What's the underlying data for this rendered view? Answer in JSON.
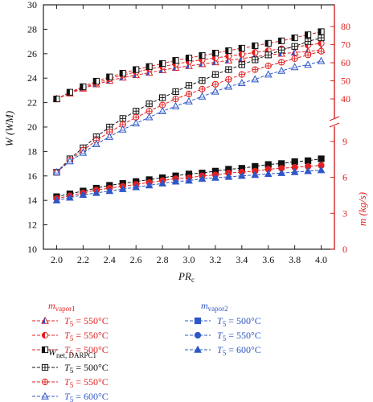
{
  "chart_data": {
    "type": "line",
    "xlabel": "PR",
    "xlabel_sub": "c",
    "ylabel_left": "W (WM)",
    "ylabel_right": "m (kg/s)",
    "xlim": [
      1.9,
      4.1
    ],
    "xticks": [
      "2.0",
      "2.2",
      "2.4",
      "2.6",
      "2.8",
      "3.0",
      "3.2",
      "3.4",
      "3.6",
      "3.8",
      "4.0"
    ],
    "ylim_left": [
      10,
      30
    ],
    "yticks_left": [
      "10",
      "12",
      "14",
      "16",
      "18",
      "20",
      "22",
      "24",
      "26",
      "28",
      "30"
    ],
    "yticks_right_upper": [
      "40",
      "50",
      "60",
      "70",
      "80"
    ],
    "yticks_right_lower": [
      "0",
      "3",
      "6",
      "9"
    ],
    "x": [
      2.0,
      2.1,
      2.2,
      2.3,
      2.4,
      2.5,
      2.6,
      2.7,
      2.8,
      2.9,
      3.0,
      3.1,
      3.2,
      3.3,
      3.4,
      3.5,
      3.6,
      3.7,
      3.8,
      3.9,
      4.0
    ],
    "series": [
      {
        "name": "m_vapor1 T5 = 550°C",
        "axis": "m1",
        "color": "#e41f1f",
        "marker": "tri-half",
        "values": [
          22.3,
          22.75,
          23.15,
          23.5,
          23.8,
          24.05,
          24.25,
          24.45,
          24.65,
          24.85,
          25.0,
          25.15,
          25.3,
          25.45,
          25.6,
          25.75,
          25.9,
          26.0,
          26.1,
          26.2,
          26.3
        ]
      },
      {
        "name": "m_vapor1 T5 = 550°C",
        "axis": "m1",
        "color": "#e41f1f",
        "marker": "circle-half",
        "values": [
          22.3,
          22.8,
          23.2,
          23.6,
          23.95,
          24.25,
          24.5,
          24.75,
          24.95,
          25.15,
          25.35,
          25.5,
          25.65,
          25.8,
          25.95,
          26.1,
          26.25,
          26.4,
          26.55,
          26.7,
          26.85
        ]
      },
      {
        "name": "m_vapor1 T5 = 500°C",
        "axis": "m1",
        "color": "#e41f1f",
        "marker": "square-half",
        "values": [
          22.3,
          22.85,
          23.3,
          23.75,
          24.1,
          24.4,
          24.7,
          24.95,
          25.2,
          25.45,
          25.65,
          25.85,
          26.05,
          26.25,
          26.45,
          26.65,
          26.85,
          27.05,
          27.3,
          27.55,
          27.8
        ]
      },
      {
        "name": "m_vapor2 T5 = 500°C",
        "axis": "m2",
        "color": "#111111",
        "marker": "square",
        "values": [
          5.3,
          5.45,
          5.6,
          5.75,
          5.9,
          6.0,
          6.1,
          6.2,
          6.3,
          6.4,
          6.5,
          6.55,
          6.65,
          6.75,
          6.8,
          6.9,
          7.0,
          7.05,
          7.15,
          7.2,
          7.3
        ]
      },
      {
        "name": "m_vapor2 T5 = 550°C",
        "axis": "m2",
        "color": "#e41f1f",
        "marker": "circle",
        "values": [
          5.2,
          5.35,
          5.5,
          5.65,
          5.75,
          5.85,
          5.95,
          6.05,
          6.15,
          6.25,
          6.3,
          6.4,
          6.45,
          6.55,
          6.6,
          6.65,
          6.75,
          6.8,
          6.85,
          6.9,
          6.95
        ]
      },
      {
        "name": "m_vapor2 T5 = 600°C",
        "axis": "m2",
        "color": "#2e57c7",
        "marker": "triangle",
        "values": [
          5.1,
          5.25,
          5.4,
          5.5,
          5.6,
          5.7,
          5.8,
          5.9,
          6.0,
          6.1,
          6.15,
          6.25,
          6.3,
          6.35,
          6.4,
          6.45,
          6.5,
          6.55,
          6.6,
          6.65,
          6.7
        ]
      },
      {
        "name": "W_net, DARPC1 T5 = 500°C",
        "axis": "w",
        "color": "#111111",
        "marker": "square-plus",
        "values": [
          16.3,
          17.4,
          18.3,
          19.2,
          20.0,
          20.7,
          21.3,
          21.9,
          22.4,
          22.9,
          23.4,
          23.8,
          24.3,
          24.7,
          25.1,
          25.5,
          25.9,
          26.3,
          26.6,
          27.0,
          27.3
        ]
      },
      {
        "name": "W_net, DARPC1 T5 = 550°C",
        "axis": "w",
        "color": "#e41f1f",
        "marker": "circle-plus",
        "values": [
          16.3,
          17.3,
          18.1,
          18.9,
          19.6,
          20.2,
          20.8,
          21.3,
          21.8,
          22.3,
          22.7,
          23.1,
          23.5,
          23.9,
          24.3,
          24.7,
          25.0,
          25.3,
          25.6,
          25.9,
          26.2
        ]
      },
      {
        "name": "W_net, DARPC1 T5 = 600°C",
        "axis": "w",
        "color": "#2e57c7",
        "marker": "triangle-open",
        "values": [
          16.3,
          17.2,
          17.9,
          18.6,
          19.2,
          19.8,
          20.3,
          20.8,
          21.3,
          21.7,
          22.1,
          22.5,
          22.9,
          23.3,
          23.6,
          23.9,
          24.3,
          24.6,
          24.9,
          25.1,
          25.4
        ]
      }
    ]
  },
  "legend": {
    "group1": {
      "title_var": "m",
      "title_sub": "vapor1",
      "color": "#e41f1f",
      "items": [
        {
          "label_var": "T",
          "label_sub": "5",
          "label_rest": " = 550°C",
          "color": "#e41f1f",
          "marker": "tri-half"
        },
        {
          "label_var": "T",
          "label_sub": "5",
          "label_rest": " = 550°C",
          "color": "#e41f1f",
          "marker": "circle-half"
        },
        {
          "label_var": "T",
          "label_sub": "5",
          "label_rest": " = 500°C",
          "color": "#e41f1f",
          "marker": "square-half"
        }
      ]
    },
    "group2": {
      "title_var": "m",
      "title_sub": "vapor2",
      "color": "#2e57c7",
      "items": [
        {
          "label_var": "T",
          "label_sub": "5",
          "label_rest": " = 500°C",
          "color": "#2e57c7",
          "marker": "square"
        },
        {
          "label_var": "T",
          "label_sub": "5",
          "label_rest": " = 550°C",
          "color": "#2e57c7",
          "marker": "circle"
        },
        {
          "label_var": "T",
          "label_sub": "5",
          "label_rest": " = 600°C",
          "color": "#2e57c7",
          "marker": "triangle"
        }
      ]
    },
    "group3": {
      "title_var": "W",
      "title_sub": "net, DARPC1",
      "color": "#111111",
      "items": [
        {
          "label_var": "T",
          "label_sub": "5",
          "label_rest": " = 500°C",
          "color": "#111111",
          "marker": "square-plus"
        },
        {
          "label_var": "T",
          "label_sub": "5",
          "label_rest": " = 550°C",
          "color": "#e41f1f",
          "marker": "circle-plus"
        },
        {
          "label_var": "T",
          "label_sub": "5",
          "label_rest": " = 600°C",
          "color": "#2e57c7",
          "marker": "triangle-open"
        }
      ]
    }
  },
  "colors": {
    "red": "#e41f1f",
    "blue": "#2e57c7",
    "black": "#111111"
  }
}
